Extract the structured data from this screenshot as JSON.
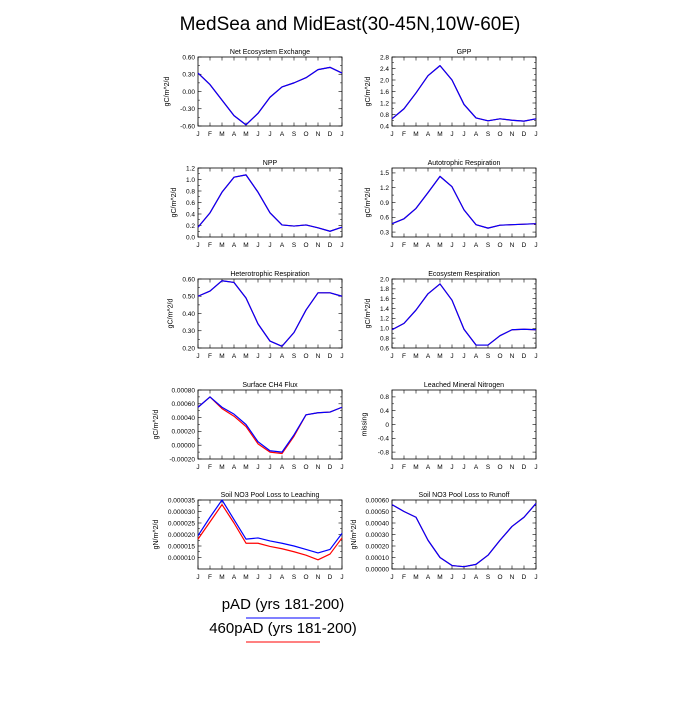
{
  "figure": {
    "title": "MedSea and MidEast(30-45N,10W-60E)",
    "months": [
      "J",
      "F",
      "M",
      "A",
      "M",
      "J",
      "J",
      "A",
      "S",
      "O",
      "N",
      "D",
      "J"
    ],
    "legend": [
      {
        "label": "pAD (yrs 181-200)",
        "color": "#0000ff"
      },
      {
        "label": "460pAD (yrs 181-200)",
        "color": "#ff0000"
      }
    ]
  },
  "chart_data": [
    {
      "type": "line",
      "title": "Net Ecosystem Exchange",
      "ylabel": "gC/m^2/d",
      "ylim": [
        -0.6,
        0.6
      ],
      "yticks": [
        -0.6,
        -0.3,
        0.0,
        0.3,
        0.6
      ],
      "ytick_labels": [
        "-0.60",
        "-0.30",
        "0.00",
        "0.30",
        "0.60"
      ],
      "x": [
        "J",
        "F",
        "M",
        "A",
        "M",
        "J",
        "J",
        "A",
        "S",
        "O",
        "N",
        "D",
        "J"
      ],
      "series": [
        {
          "name": "pAD (yrs 181-200)",
          "color": "#0000ff",
          "values": [
            0.32,
            0.12,
            -0.15,
            -0.42,
            -0.58,
            -0.38,
            -0.1,
            0.08,
            0.15,
            0.24,
            0.38,
            0.42,
            0.32
          ]
        },
        {
          "name": "460pAD (yrs 181-200)",
          "color": "#ff0000",
          "values": [
            0.32,
            0.12,
            -0.15,
            -0.42,
            -0.58,
            -0.38,
            -0.1,
            0.08,
            0.15,
            0.24,
            0.38,
            0.42,
            0.32
          ]
        }
      ]
    },
    {
      "type": "line",
      "title": "GPP",
      "ylabel": "gC/m^2/d",
      "ylim": [
        0.4,
        2.8
      ],
      "yticks": [
        0.4,
        0.8,
        1.2,
        1.6,
        2.0,
        2.4,
        2.8
      ],
      "ytick_labels": [
        "0.4",
        "0.8",
        "1.2",
        "1.6",
        "2.0",
        "2.4",
        "2.8"
      ],
      "x": [
        "J",
        "F",
        "M",
        "A",
        "M",
        "J",
        "J",
        "A",
        "S",
        "O",
        "N",
        "D",
        "J"
      ],
      "series": [
        {
          "name": "pAD (yrs 181-200)",
          "color": "#0000ff",
          "values": [
            0.65,
            1.0,
            1.55,
            2.15,
            2.5,
            2.0,
            1.15,
            0.68,
            0.58,
            0.65,
            0.6,
            0.57,
            0.65
          ]
        },
        {
          "name": "460pAD (yrs 181-200)",
          "color": "#ff0000",
          "values": [
            0.65,
            1.0,
            1.55,
            2.15,
            2.5,
            2.0,
            1.15,
            0.68,
            0.58,
            0.65,
            0.6,
            0.57,
            0.65
          ]
        }
      ]
    },
    {
      "type": "line",
      "title": "NPP",
      "ylabel": "gC/m^2/d",
      "ylim": [
        0.0,
        1.2
      ],
      "yticks": [
        0.0,
        0.2,
        0.4,
        0.6,
        0.8,
        1.0,
        1.2
      ],
      "ytick_labels": [
        "0.0",
        "0.2",
        "0.4",
        "0.6",
        "0.8",
        "1.0",
        "1.2"
      ],
      "x": [
        "J",
        "F",
        "M",
        "A",
        "M",
        "J",
        "J",
        "A",
        "S",
        "O",
        "N",
        "D",
        "J"
      ],
      "series": [
        {
          "name": "pAD (yrs 181-200)",
          "color": "#0000ff",
          "values": [
            0.17,
            0.42,
            0.78,
            1.04,
            1.08,
            0.78,
            0.42,
            0.21,
            0.19,
            0.21,
            0.16,
            0.1,
            0.17
          ]
        },
        {
          "name": "460pAD (yrs 181-200)",
          "color": "#ff0000",
          "values": [
            0.17,
            0.42,
            0.78,
            1.04,
            1.08,
            0.78,
            0.42,
            0.21,
            0.19,
            0.21,
            0.16,
            0.1,
            0.17
          ]
        }
      ]
    },
    {
      "type": "line",
      "title": "Autotrophic Respiration",
      "ylabel": "gC/m^2/d",
      "ylim": [
        0.2,
        1.6
      ],
      "yticks": [
        0.3,
        0.6,
        0.9,
        1.2,
        1.5
      ],
      "ytick_labels": [
        "0.3",
        "0.6",
        "0.9",
        "1.2",
        "1.5"
      ],
      "x": [
        "J",
        "F",
        "M",
        "A",
        "M",
        "J",
        "J",
        "A",
        "S",
        "O",
        "N",
        "D",
        "J"
      ],
      "series": [
        {
          "name": "pAD (yrs 181-200)",
          "color": "#0000ff",
          "values": [
            0.47,
            0.57,
            0.78,
            1.1,
            1.43,
            1.22,
            0.75,
            0.45,
            0.38,
            0.44,
            0.45,
            0.46,
            0.47
          ]
        },
        {
          "name": "460pAD (yrs 181-200)",
          "color": "#ff0000",
          "values": [
            0.47,
            0.57,
            0.78,
            1.1,
            1.43,
            1.22,
            0.75,
            0.45,
            0.38,
            0.44,
            0.45,
            0.46,
            0.47
          ]
        }
      ]
    },
    {
      "type": "line",
      "title": "Heterotrophic Respiration",
      "ylabel": "gC/m^2/d",
      "ylim": [
        0.2,
        0.6
      ],
      "yticks": [
        0.2,
        0.3,
        0.4,
        0.5,
        0.6
      ],
      "ytick_labels": [
        "0.20",
        "0.30",
        "0.40",
        "0.50",
        "0.60"
      ],
      "x": [
        "J",
        "F",
        "M",
        "A",
        "M",
        "J",
        "J",
        "A",
        "S",
        "O",
        "N",
        "D",
        "J"
      ],
      "series": [
        {
          "name": "pAD (yrs 181-200)",
          "color": "#0000ff",
          "values": [
            0.5,
            0.53,
            0.59,
            0.58,
            0.49,
            0.34,
            0.24,
            0.21,
            0.29,
            0.42,
            0.52,
            0.52,
            0.5
          ]
        },
        {
          "name": "460pAD (yrs 181-200)",
          "color": "#ff0000",
          "values": [
            0.5,
            0.53,
            0.59,
            0.58,
            0.49,
            0.34,
            0.24,
            0.21,
            0.29,
            0.42,
            0.52,
            0.52,
            0.5
          ]
        }
      ]
    },
    {
      "type": "line",
      "title": "Ecosystem Respiration",
      "ylabel": "gC/m^2/d",
      "ylim": [
        0.6,
        2.0
      ],
      "yticks": [
        0.6,
        0.8,
        1.0,
        1.2,
        1.4,
        1.6,
        1.8,
        2.0
      ],
      "ytick_labels": [
        "0.6",
        "0.8",
        "1.0",
        "1.2",
        "1.4",
        "1.6",
        "1.8",
        "2.0"
      ],
      "x": [
        "J",
        "F",
        "M",
        "A",
        "M",
        "J",
        "J",
        "A",
        "S",
        "O",
        "N",
        "D",
        "J"
      ],
      "series": [
        {
          "name": "pAD (yrs 181-200)",
          "color": "#0000ff",
          "values": [
            0.97,
            1.1,
            1.37,
            1.7,
            1.9,
            1.57,
            0.98,
            0.66,
            0.66,
            0.85,
            0.97,
            0.98,
            0.97
          ]
        },
        {
          "name": "460pAD (yrs 181-200)",
          "color": "#ff0000",
          "values": [
            0.97,
            1.1,
            1.37,
            1.7,
            1.9,
            1.57,
            0.98,
            0.66,
            0.66,
            0.85,
            0.97,
            0.98,
            0.97
          ]
        }
      ]
    },
    {
      "type": "line",
      "title": "Surface CH4 Flux",
      "ylabel": "gC/m^2/d",
      "ylim": [
        -0.0002,
        0.0008
      ],
      "yticks": [
        -0.0002,
        0.0,
        0.0002,
        0.0004,
        0.0006,
        0.0008
      ],
      "ytick_labels": [
        "-0.00020",
        "0.00000",
        "0.00020",
        "0.00040",
        "0.00060",
        "0.00080"
      ],
      "x": [
        "J",
        "F",
        "M",
        "A",
        "M",
        "J",
        "J",
        "A",
        "S",
        "O",
        "N",
        "D",
        "J"
      ],
      "series": [
        {
          "name": "pAD (yrs 181-200)",
          "color": "#0000ff",
          "values": [
            0.00055,
            0.0007,
            0.00055,
            0.00045,
            0.0003,
            5e-05,
            -8e-05,
            -0.0001,
            0.00015,
            0.00044,
            0.00047,
            0.00048,
            0.00055
          ]
        },
        {
          "name": "460pAD (yrs 181-200)",
          "color": "#ff0000",
          "values": [
            0.00055,
            0.0007,
            0.00053,
            0.00042,
            0.00027,
            2e-05,
            -0.0001,
            -0.00012,
            0.00013,
            0.00044,
            0.00047,
            0.00048,
            0.00055
          ]
        }
      ]
    },
    {
      "type": "line",
      "title": "Leached Mineral Nitrogen",
      "ylabel": "missing",
      "ylim": [
        -1.0,
        1.0
      ],
      "yticks": [
        -0.8,
        -0.4,
        0.0,
        0.4,
        0.8
      ],
      "ytick_labels": [
        "-0.8",
        "-0.4",
        "0",
        "0.4",
        "0.8"
      ],
      "x": [
        "J",
        "F",
        "M",
        "A",
        "M",
        "J",
        "J",
        "A",
        "S",
        "O",
        "N",
        "D",
        "J"
      ],
      "series": []
    },
    {
      "type": "line",
      "title": "Soil NO3 Pool Loss to Leaching",
      "ylabel": "gN/m^2/d",
      "ylim": [
        5e-06,
        3.5e-05
      ],
      "yticks": [
        1e-05,
        1.5e-05,
        2e-05,
        2.5e-05,
        3e-05,
        3.5e-05
      ],
      "ytick_labels": [
        "0.000010",
        "0.000015",
        "0.000020",
        "0.000025",
        "0.000030",
        "0.000035"
      ],
      "x": [
        "J",
        "F",
        "M",
        "A",
        "M",
        "J",
        "J",
        "A",
        "S",
        "O",
        "N",
        "D",
        "J"
      ],
      "series": [
        {
          "name": "pAD (yrs 181-200)",
          "color": "#0000ff",
          "values": [
            1.95e-05,
            2.75e-05,
            3.5e-05,
            2.65e-05,
            1.8e-05,
            1.85e-05,
            1.72e-05,
            1.62e-05,
            1.5e-05,
            1.35e-05,
            1.2e-05,
            1.35e-05,
            2.05e-05
          ]
        },
        {
          "name": "460pAD (yrs 181-200)",
          "color": "#ff0000",
          "values": [
            1.8e-05,
            2.55e-05,
            3.3e-05,
            2.5e-05,
            1.62e-05,
            1.62e-05,
            1.48e-05,
            1.38e-05,
            1.25e-05,
            1.1e-05,
            9e-06,
            1.15e-05,
            1.85e-05
          ]
        }
      ]
    },
    {
      "type": "line",
      "title": "Soil NO3 Pool Loss to Runoff",
      "ylabel": "gN/m^2/d",
      "ylim": [
        0.0,
        0.0006
      ],
      "yticks": [
        0.0,
        0.0001,
        0.0002,
        0.0003,
        0.0004,
        0.0005,
        0.0006
      ],
      "ytick_labels": [
        "0.00000",
        "0.00010",
        "0.00020",
        "0.00030",
        "0.00040",
        "0.00050",
        "0.00060"
      ],
      "x": [
        "J",
        "F",
        "M",
        "A",
        "M",
        "J",
        "J",
        "A",
        "S",
        "O",
        "N",
        "D",
        "J"
      ],
      "series": [
        {
          "name": "pAD (yrs 181-200)",
          "color": "#0000ff",
          "values": [
            0.00056,
            0.0005,
            0.00045,
            0.00025,
            0.0001,
            3e-05,
            2e-05,
            4e-05,
            0.00012,
            0.00025,
            0.00037,
            0.00045,
            0.00057
          ]
        },
        {
          "name": "460pAD (yrs 181-200)",
          "color": "#ff0000",
          "values": [
            0.00056,
            0.0005,
            0.00045,
            0.00025,
            0.0001,
            3e-05,
            2e-05,
            4e-05,
            0.00012,
            0.00025,
            0.00037,
            0.00045,
            0.00057
          ]
        }
      ]
    }
  ]
}
